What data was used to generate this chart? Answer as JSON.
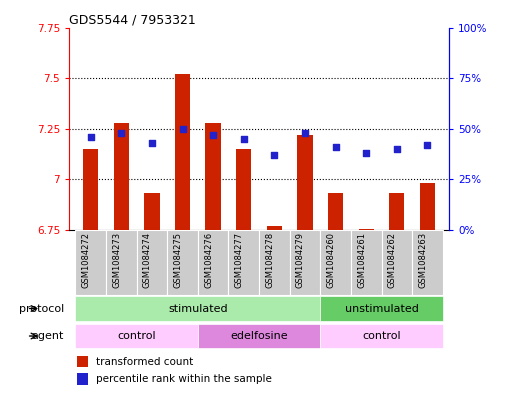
{
  "title": "GDS5544 / 7953321",
  "samples": [
    "GSM1084272",
    "GSM1084273",
    "GSM1084274",
    "GSM1084275",
    "GSM1084276",
    "GSM1084277",
    "GSM1084278",
    "GSM1084279",
    "GSM1084260",
    "GSM1084261",
    "GSM1084262",
    "GSM1084263"
  ],
  "bar_values": [
    7.15,
    7.28,
    6.93,
    7.52,
    7.28,
    7.15,
    6.77,
    7.22,
    6.93,
    6.755,
    6.93,
    6.98
  ],
  "bar_base": 6.75,
  "blue_dots": [
    46,
    48,
    43,
    50,
    47,
    45,
    37,
    48,
    41,
    38,
    40,
    42
  ],
  "ylim_left": [
    6.75,
    7.75
  ],
  "ylim_right": [
    0,
    100
  ],
  "yticks_left": [
    6.75,
    7.0,
    7.25,
    7.5,
    7.75
  ],
  "yticks_right": [
    0,
    25,
    50,
    75,
    100
  ],
  "ytick_labels_left": [
    "6.75",
    "7",
    "7.25",
    "7.5",
    "7.75"
  ],
  "ytick_labels_right": [
    "0%",
    "25%",
    "50%",
    "75%",
    "100%"
  ],
  "grid_lines": [
    7.0,
    7.25,
    7.5
  ],
  "bar_color": "#cc2200",
  "dot_color": "#2222cc",
  "protocol_groups": [
    {
      "label": "stimulated",
      "start": 0,
      "end": 7,
      "color": "#aaeaaa"
    },
    {
      "label": "unstimulated",
      "start": 8,
      "end": 11,
      "color": "#66cc66"
    }
  ],
  "agent_groups": [
    {
      "label": "control",
      "start": 0,
      "end": 3,
      "color": "#ffccff"
    },
    {
      "label": "edelfosine",
      "start": 4,
      "end": 7,
      "color": "#dd88dd"
    },
    {
      "label": "control",
      "start": 8,
      "end": 11,
      "color": "#ffccff"
    }
  ],
  "legend_bar_label": "transformed count",
  "legend_dot_label": "percentile rank within the sample",
  "bar_width": 0.5,
  "background_color": "#ffffff",
  "sample_box_color": "#cccccc"
}
